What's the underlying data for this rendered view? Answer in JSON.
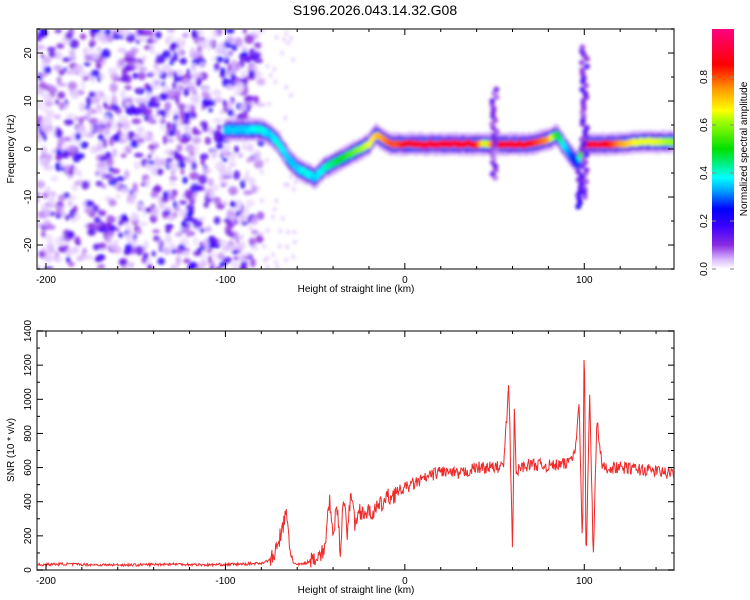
{
  "title": "S196.2026.043.14.32.G08",
  "chart_data": [
    {
      "type": "heatmap",
      "name": "spectrogram",
      "xlabel": "Height of straight line (km)",
      "ylabel": "Frequency (Hz)",
      "xlim": [
        -205,
        150
      ],
      "ylim": [
        -25,
        25
      ],
      "xticks": [
        -200,
        -100,
        0,
        100
      ],
      "xtick_labels": [
        "-200",
        "-100",
        "0",
        "100"
      ],
      "yticks": [
        -20,
        -10,
        0,
        10,
        20
      ],
      "ytick_labels": [
        "-20",
        "-10",
        "0",
        "10",
        "20"
      ],
      "colorbar": {
        "label": "Normalized spectral amplitude",
        "range": [
          0.0,
          1.0
        ],
        "ticks": [
          0.0,
          0.2,
          0.4,
          0.6,
          0.8
        ],
        "tick_labels": [
          "0.0",
          "0.2",
          "0.4",
          "0.6",
          "0.8"
        ],
        "colormap": [
          "#ffffff",
          "#d9b8ff",
          "#8a2be2",
          "#5a00ff",
          "#0000ff",
          "#00bfff",
          "#00ffff",
          "#00e000",
          "#ffff00",
          "#ff8000",
          "#ff0000",
          "#ff0080"
        ]
      },
      "ridge": {
        "description": "Dominant frequency track vs height",
        "x": [
          -100,
          -90,
          -80,
          -75,
          -70,
          -65,
          -60,
          -55,
          -50,
          -45,
          -40,
          -35,
          -30,
          -25,
          -20,
          -16,
          -12,
          -8,
          -4,
          0,
          10,
          20,
          30,
          40,
          45,
          50,
          55,
          60,
          70,
          80,
          85,
          88,
          92,
          96,
          100,
          104,
          110,
          120,
          130,
          140,
          150
        ],
        "y": [
          4,
          4,
          4,
          3,
          1,
          -2,
          -4,
          -5,
          -6,
          -4,
          -3,
          -2,
          -1,
          0,
          1,
          3,
          2,
          1,
          1,
          1,
          1,
          1,
          1,
          1,
          1,
          1,
          1,
          1,
          1,
          2,
          3,
          1,
          -1,
          -3,
          1,
          1,
          1,
          1,
          1.5,
          1.5,
          1.5
        ],
        "amplitude": [
          0.35,
          0.35,
          0.4,
          0.35,
          0.4,
          0.35,
          0.35,
          0.4,
          0.35,
          0.4,
          0.45,
          0.5,
          0.55,
          0.6,
          0.65,
          0.7,
          0.75,
          0.8,
          0.8,
          0.85,
          0.9,
          0.9,
          0.9,
          0.85,
          0.6,
          0.85,
          0.9,
          0.9,
          0.85,
          0.75,
          0.5,
          0.4,
          0.3,
          0.25,
          0.85,
          0.9,
          0.9,
          0.75,
          0.65,
          0.65,
          0.6
        ]
      },
      "noise_region": {
        "x_from": -205,
        "x_to": -80,
        "amplitude": 0.15
      }
    },
    {
      "type": "line",
      "name": "snr",
      "xlabel": "Height of straight line (km)",
      "ylabel": "SNR (10 * v/v)",
      "xlim": [
        -205,
        150
      ],
      "ylim": [
        0,
        1400
      ],
      "xticks": [
        -200,
        -100,
        0,
        100
      ],
      "xtick_labels": [
        "-200",
        "-100",
        "0",
        "100"
      ],
      "yticks": [
        0,
        200,
        400,
        600,
        800,
        1000,
        1200,
        1400
      ],
      "ytick_labels": [
        "0",
        "200",
        "400",
        "600",
        "800",
        "1000",
        "1200",
        "1400"
      ],
      "color": "#ee2a2a",
      "series": [
        {
          "name": "SNR",
          "x": [
            -205,
            -190,
            -170,
            -150,
            -130,
            -110,
            -90,
            -80,
            -75,
            -72,
            -70,
            -68,
            -66,
            -64,
            -62,
            -60,
            -55,
            -50,
            -45,
            -42,
            -40,
            -38,
            -36,
            -34,
            -32,
            -30,
            -28,
            -25,
            -20,
            -15,
            -10,
            -5,
            0,
            10,
            20,
            30,
            40,
            50,
            55,
            58,
            60,
            61,
            62,
            64,
            70,
            80,
            90,
            95,
            97,
            99,
            100,
            101,
            103,
            105,
            107,
            110,
            120,
            130,
            140,
            150
          ],
          "y": [
            30,
            35,
            30,
            30,
            35,
            30,
            35,
            40,
            60,
            100,
            180,
            250,
            330,
            120,
            40,
            30,
            40,
            80,
            100,
            420,
            150,
            400,
            120,
            450,
            200,
            480,
            270,
            350,
            330,
            360,
            420,
            450,
            480,
            530,
            580,
            560,
            600,
            600,
            610,
            1080,
            100,
            940,
            560,
            600,
            620,
            610,
            620,
            700,
            1010,
            150,
            1400,
            40,
            1020,
            80,
            880,
            600,
            600,
            590,
            580,
            560
          ]
        }
      ]
    }
  ]
}
